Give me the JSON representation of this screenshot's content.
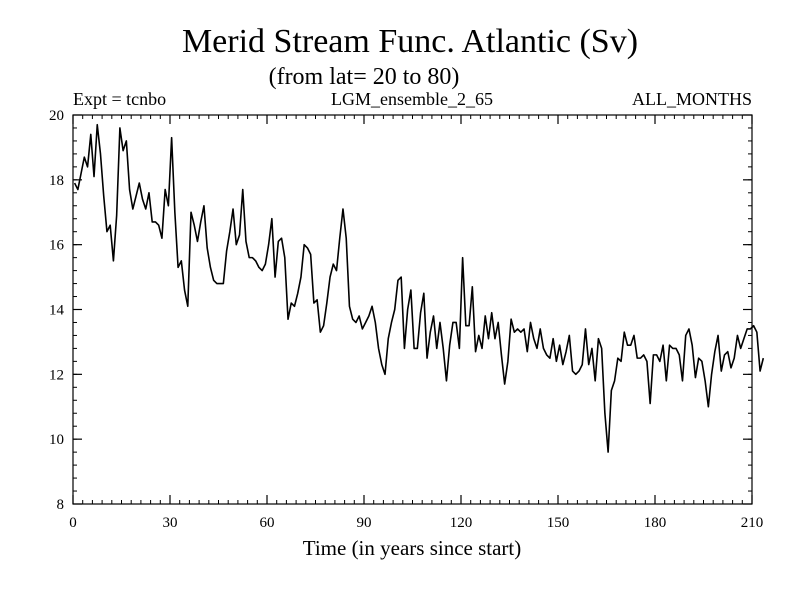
{
  "chart_data": {
    "type": "line",
    "title": "Merid Stream Func. Atlantic (Sv)",
    "subtitle": "(from lat= 20 to 80)",
    "header": {
      "left": "Expt = tcnbo",
      "center": "LGM_ensemble_2_65",
      "right": "ALL_MONTHS"
    },
    "xlabel": "Time (in years since start)",
    "ylabel": "",
    "xlim": [
      0,
      210
    ],
    "ylim": [
      8,
      20
    ],
    "x_ticks": [
      0,
      30,
      60,
      90,
      120,
      150,
      180,
      210
    ],
    "y_ticks": [
      8,
      10,
      12,
      14,
      16,
      18,
      20
    ],
    "x_minor_step": 3,
    "y_minor_step": 0.4,
    "grid": false,
    "line_color": "#000000",
    "series": [
      {
        "name": "Merid Stream Func. Atlantic",
        "x_start": 0.5,
        "x_step": 1,
        "values": [
          17.9,
          17.7,
          18.2,
          18.7,
          18.4,
          19.4,
          18.1,
          19.7,
          18.8,
          17.5,
          16.4,
          16.6,
          15.5,
          16.9,
          19.6,
          18.9,
          19.2,
          17.7,
          17.1,
          17.5,
          17.9,
          17.4,
          17.1,
          17.6,
          16.7,
          16.7,
          16.6,
          16.2,
          17.7,
          17.2,
          19.3,
          17.0,
          15.3,
          15.5,
          14.6,
          14.1,
          17.0,
          16.6,
          16.1,
          16.7,
          17.2,
          15.9,
          15.3,
          14.9,
          14.8,
          14.8,
          14.8,
          15.8,
          16.4,
          17.1,
          16.0,
          16.3,
          17.7,
          16.1,
          15.6,
          15.6,
          15.5,
          15.3,
          15.2,
          15.4,
          16.0,
          16.8,
          15.0,
          16.1,
          16.2,
          15.6,
          13.7,
          14.2,
          14.1,
          14.5,
          15.0,
          16.0,
          15.9,
          15.7,
          14.2,
          14.3,
          13.3,
          13.5,
          14.2,
          15.0,
          15.4,
          15.2,
          16.2,
          17.1,
          16.2,
          14.1,
          13.7,
          13.6,
          13.8,
          13.4,
          13.6,
          13.8,
          14.1,
          13.6,
          12.8,
          12.3,
          12.0,
          13.1,
          13.6,
          14.0,
          14.9,
          15.0,
          12.8,
          14.0,
          14.6,
          12.8,
          12.8,
          13.9,
          14.5,
          12.5,
          13.3,
          13.8,
          12.8,
          13.6,
          12.8,
          11.8,
          12.9,
          13.6,
          13.6,
          12.8,
          15.6,
          13.5,
          13.5,
          14.7,
          12.7,
          13.2,
          12.8,
          13.8,
          13.1,
          13.9,
          13.1,
          13.6,
          12.6,
          11.7,
          12.4,
          13.7,
          13.3,
          13.4,
          13.3,
          13.4,
          12.7,
          13.6,
          13.1,
          12.8,
          13.4,
          12.8,
          12.6,
          12.5,
          13.1,
          12.4,
          12.9,
          12.3,
          12.7,
          13.2,
          12.1,
          12.0,
          12.1,
          12.3,
          13.4,
          12.3,
          12.8,
          11.8,
          13.1,
          12.8,
          10.8,
          9.6,
          11.5,
          11.8,
          12.5,
          12.4,
          13.3,
          12.9,
          12.9,
          13.2,
          12.5,
          12.5,
          12.6,
          12.4,
          11.1,
          12.6,
          12.6,
          12.4,
          12.9,
          11.8,
          12.9,
          12.8,
          12.8,
          12.6,
          11.8,
          13.2,
          13.4,
          12.9,
          11.9,
          12.5,
          12.4,
          11.8,
          11.0,
          12.0,
          12.7,
          13.2,
          12.1,
          12.6,
          12.7,
          12.2,
          12.5,
          13.2,
          12.8,
          13.1,
          13.4,
          13.4,
          13.5,
          13.3,
          12.1,
          12.5
        ]
      }
    ]
  }
}
